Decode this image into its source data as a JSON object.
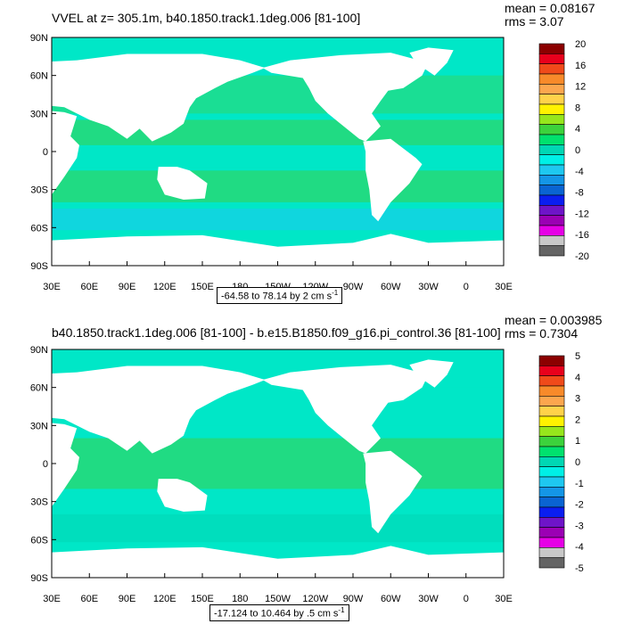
{
  "chart_data": [
    {
      "type": "heatmap",
      "title": "VVEL at z= 305.1m, b40.1850.track1.1deg.006 [81-100]",
      "stats": {
        "mean": "mean = 0.08167",
        "rms": "rms = 3.07"
      },
      "ylabels": [
        "90N",
        "60N",
        "30N",
        "0",
        "30S",
        "60S",
        "90S"
      ],
      "xlabels": [
        "30E",
        "60E",
        "90E",
        "120E",
        "150E",
        "180",
        "150W",
        "120W",
        "90W",
        "60W",
        "30W",
        "0",
        "30E"
      ],
      "colorbar_labels": [
        "20",
        "16",
        "12",
        "8",
        "4",
        "0",
        "-4",
        "-8",
        "-12",
        "-16",
        "-20"
      ],
      "colorbar_colors": [
        "#8b0000",
        "#e8001c",
        "#f04a1a",
        "#f88a2a",
        "#fca64e",
        "#ffd24a",
        "#fff200",
        "#96e61c",
        "#3cd23c",
        "#00e16e",
        "#00d7b4",
        "#00f0e6",
        "#1ec8f0",
        "#1496e6",
        "#0a64d2",
        "#0a1ef0",
        "#6e14c8",
        "#9b00b4",
        "#e600e6",
        "#c8c8c8",
        "#646464"
      ],
      "range_text": "-64.58 to 78.14 by 2 cm s",
      "range_sup": "-1",
      "zlim": [
        -20,
        20
      ]
    },
    {
      "type": "heatmap",
      "title": "b40.1850.track1.1deg.006 [81-100] - b.e15.B1850.f09_g16.pi_control.36 [81-100]",
      "stats": {
        "mean": "mean = 0.003985",
        "rms": "rms = 0.7304"
      },
      "ylabels": [
        "90N",
        "60N",
        "30N",
        "0",
        "30S",
        "60S",
        "90S"
      ],
      "xlabels": [
        "30E",
        "60E",
        "90E",
        "120E",
        "150E",
        "180",
        "150W",
        "120W",
        "90W",
        "60W",
        "30W",
        "0",
        "30E"
      ],
      "colorbar_labels": [
        "5",
        "4",
        "3",
        "2",
        "1",
        "0",
        "-1",
        "-2",
        "-3",
        "-4",
        "-5"
      ],
      "colorbar_colors": [
        "#8b0000",
        "#e8001c",
        "#f04a1a",
        "#f88a2a",
        "#fca64e",
        "#ffd24a",
        "#fff200",
        "#96e61c",
        "#3cd23c",
        "#00e16e",
        "#00d7b4",
        "#00f0e6",
        "#1ec8f0",
        "#1496e6",
        "#0a64d2",
        "#0a1ef0",
        "#6e14c8",
        "#9b00b4",
        "#e600e6",
        "#c8c8c8",
        "#646464"
      ],
      "range_text": "-17.124 to 10.464 by .5 cm s",
      "range_sup": "-1",
      "zlim": [
        -5,
        5
      ]
    }
  ]
}
